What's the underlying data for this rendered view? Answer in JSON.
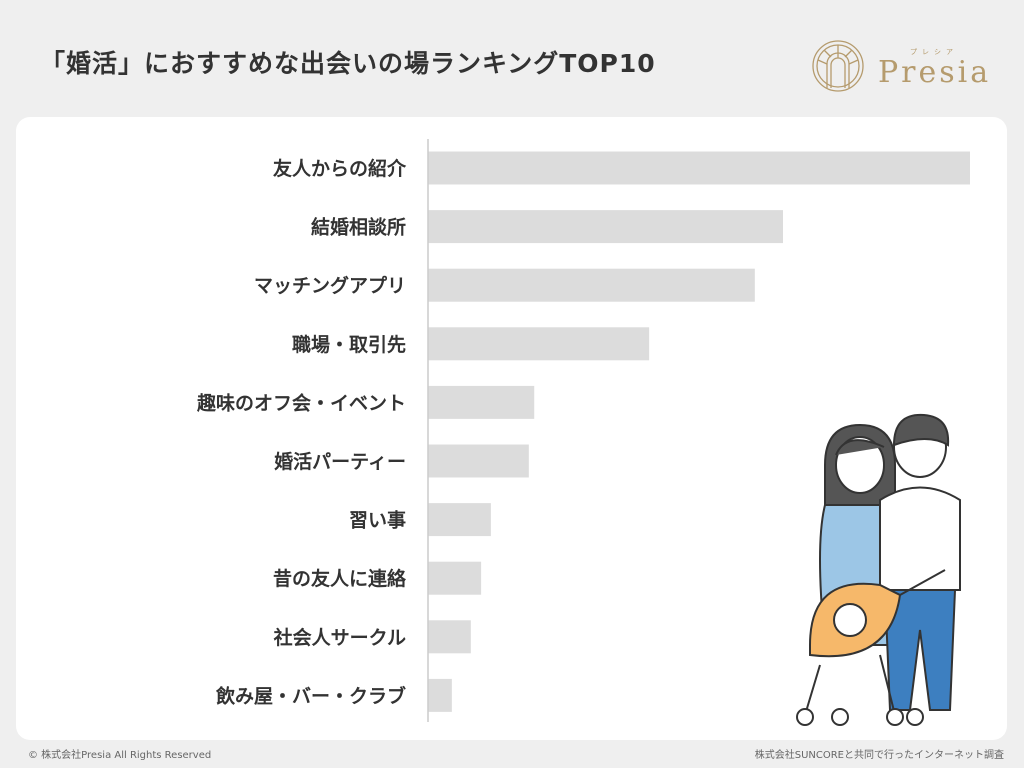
{
  "title": "「婚活」におすすめな出会いの場ランキングTOP10",
  "logo": {
    "text": "Presia",
    "kana": "プレシア",
    "color": "#b59b6d"
  },
  "chart_data": {
    "type": "bar",
    "orientation": "horizontal",
    "categories": [
      "友人からの紹介",
      "結婚相談所",
      "マッチングアプリ",
      "職場・取引先",
      "趣味のオフ会・イベント",
      "婚活パーティー",
      "習い事",
      "昔の友人に連絡",
      "社会人サークル",
      "飲み屋・バー・クラブ"
    ],
    "values": [
      100,
      65.5,
      60.3,
      40.8,
      19.6,
      18.6,
      11.6,
      9.8,
      7.9,
      4.4
    ],
    "value_note": "relative bar length, no axis printed",
    "xlim": [
      0,
      100
    ],
    "grid": false,
    "bar_color": "#dcdcdc"
  },
  "footer": {
    "copyright": "© 株式会社Presia All Rights Reserved",
    "source": "株式会社SUNCOREと共同で行ったインターネット調査"
  }
}
